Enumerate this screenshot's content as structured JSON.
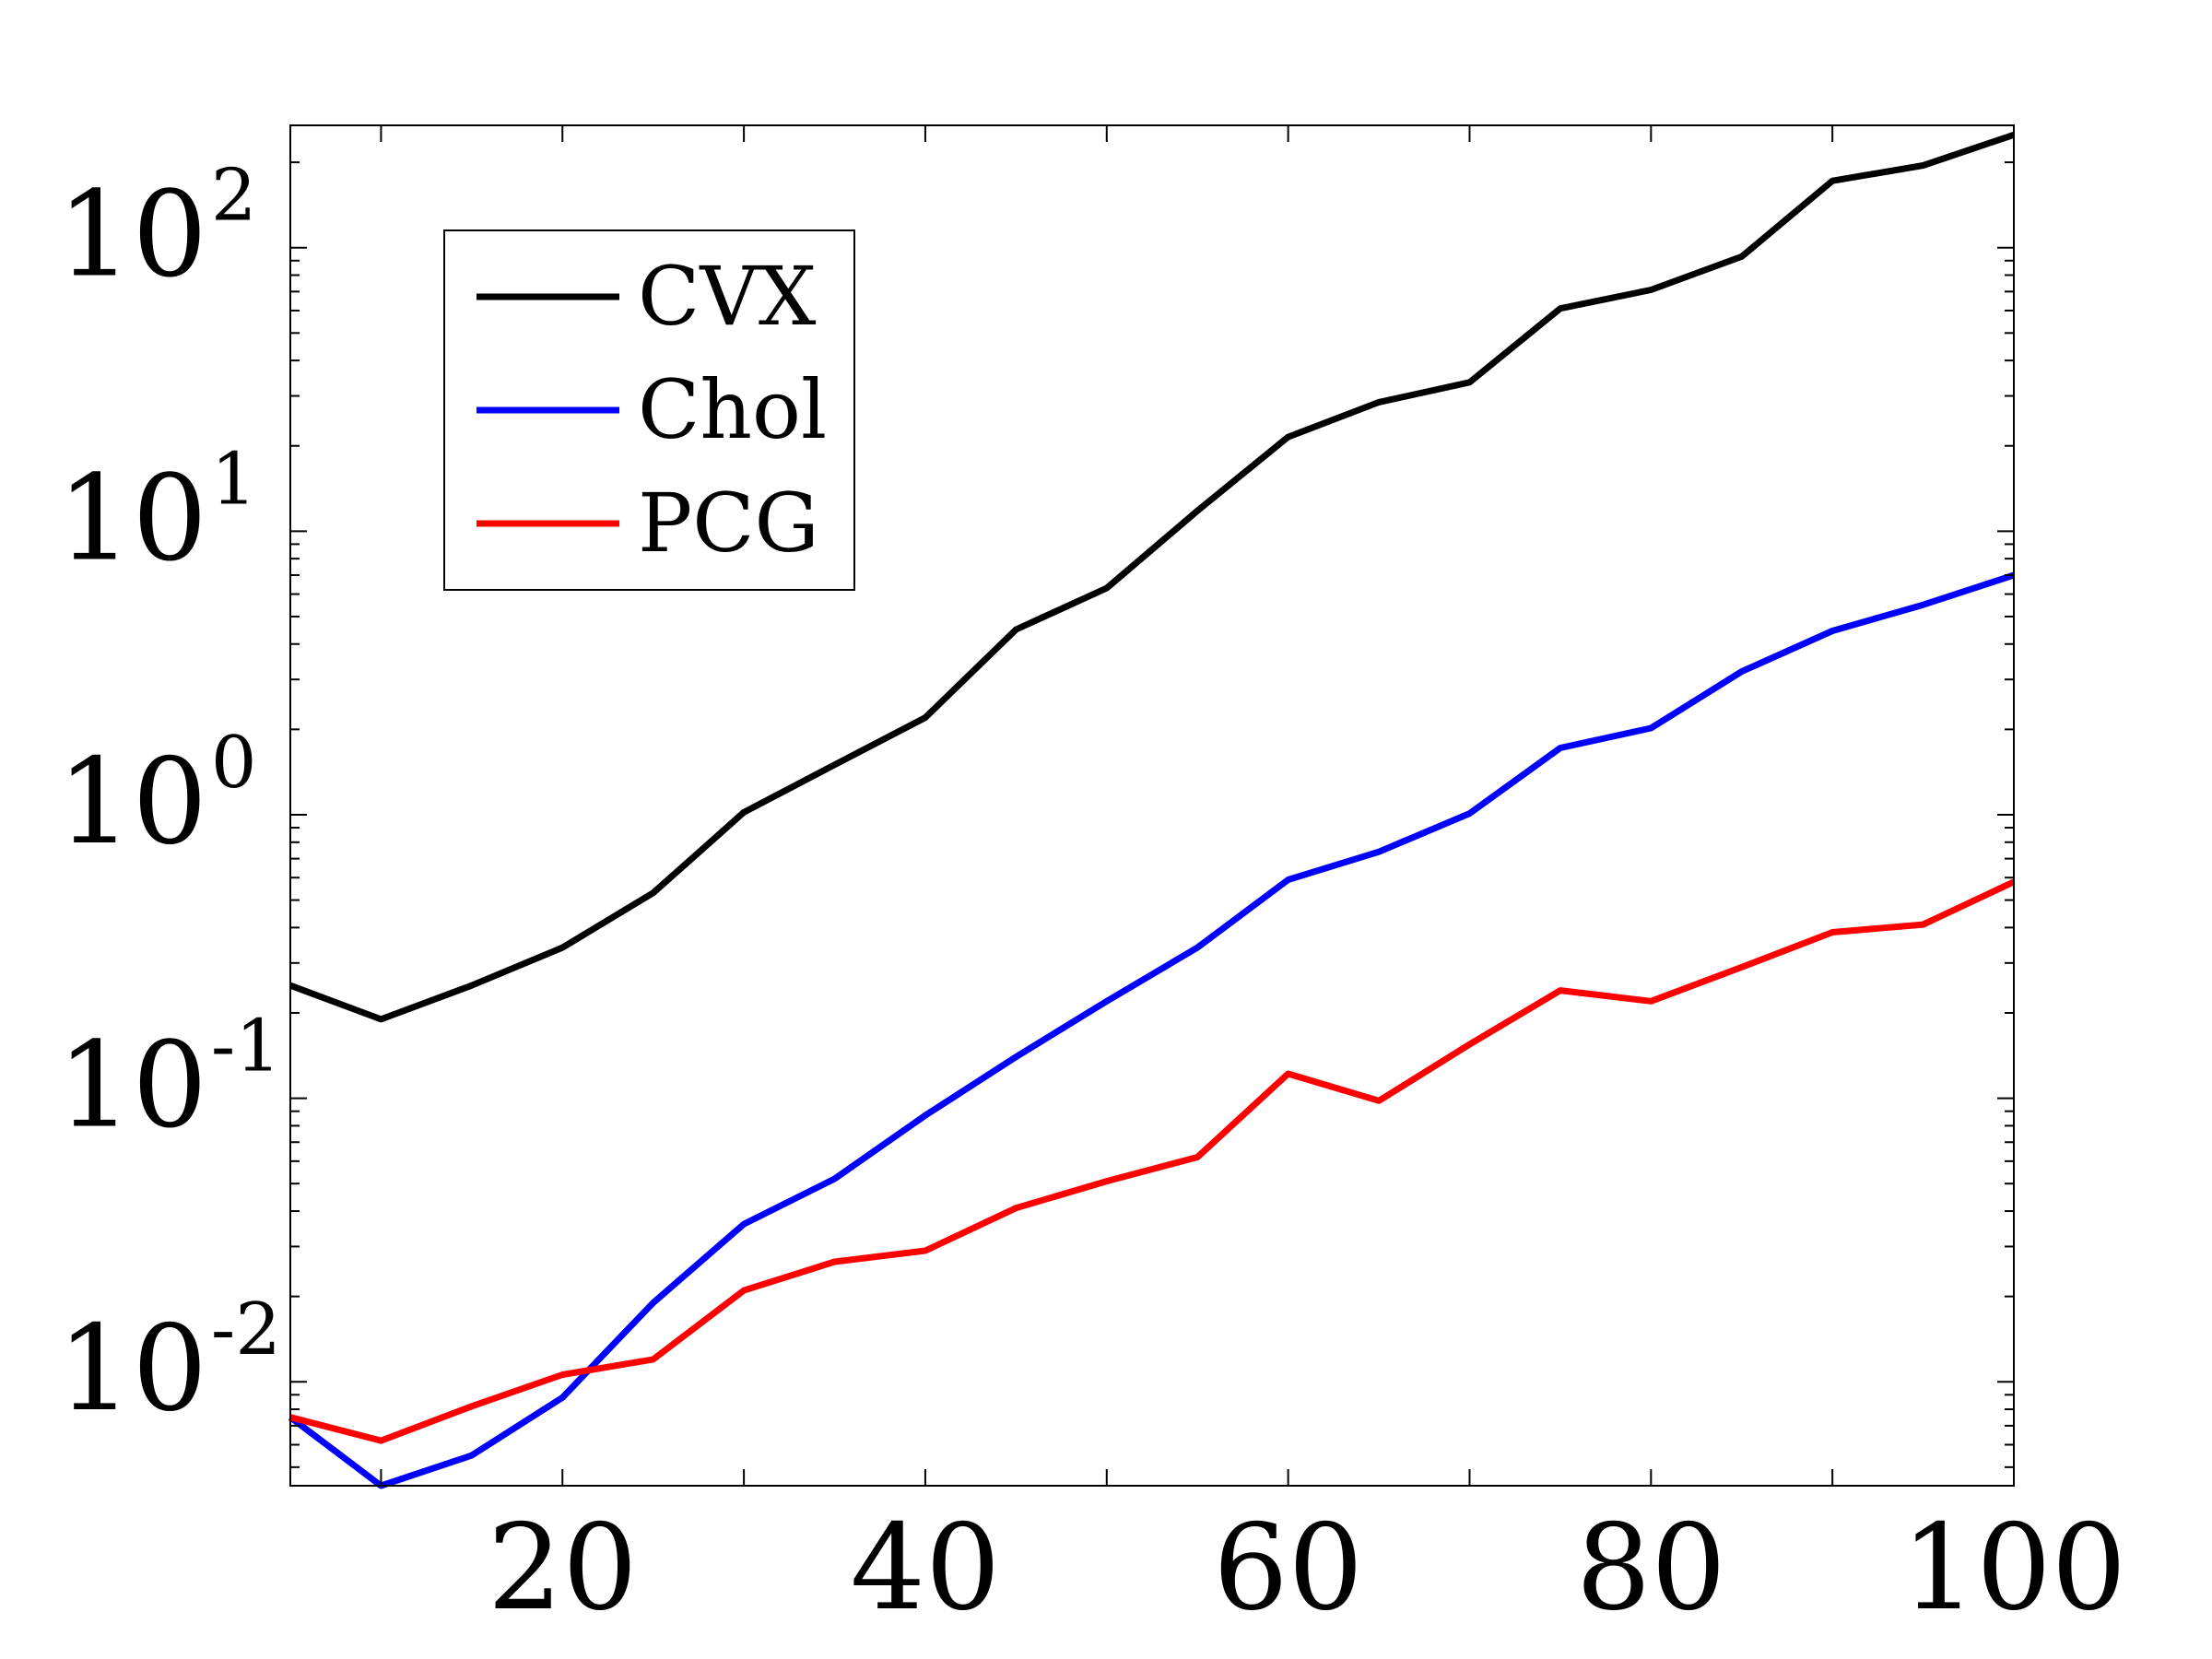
{
  "chart_data": {
    "type": "line",
    "title": "",
    "xlabel": "",
    "ylabel": "",
    "x_scale": "linear",
    "y_scale": "log",
    "xlim": [
      5,
      100
    ],
    "ylim": [
      0.0043,
      270
    ],
    "x_ticks": [
      20,
      40,
      60,
      80,
      100
    ],
    "x_tick_labels": [
      "20",
      "40",
      "60",
      "80",
      "100"
    ],
    "y_ticks": [
      0.01,
      0.1,
      1,
      10,
      100
    ],
    "y_tick_labels": [
      {
        "base": "10",
        "exp": "-2"
      },
      {
        "base": "10",
        "exp": "-1"
      },
      {
        "base": "10",
        "exp": "0"
      },
      {
        "base": "10",
        "exp": "1"
      },
      {
        "base": "10",
        "exp": "2"
      }
    ],
    "grid": false,
    "legend_position": "top-left",
    "x": [
      5,
      10,
      15,
      20,
      25,
      30,
      35,
      40,
      45,
      50,
      55,
      60,
      65,
      70,
      75,
      80,
      85,
      90,
      95,
      100
    ],
    "series": [
      {
        "name": "CVX",
        "color": "#000000",
        "values": [
          0.25,
          0.19,
          0.25,
          0.34,
          0.53,
          1.02,
          1.5,
          2.2,
          4.5,
          6.3,
          11.8,
          21.5,
          28.5,
          33.5,
          61,
          71,
          93,
          172,
          195,
          250
        ]
      },
      {
        "name": "Chol",
        "color": "#0000ff",
        "values": [
          0.0075,
          0.0043,
          0.0055,
          0.0088,
          0.019,
          0.036,
          0.052,
          0.087,
          0.14,
          0.22,
          0.34,
          0.59,
          0.74,
          1.01,
          1.72,
          2.02,
          3.2,
          4.45,
          5.5,
          7.0
        ]
      },
      {
        "name": "PCG",
        "color": "#ff0000",
        "values": [
          0.0075,
          0.0062,
          0.0082,
          0.0106,
          0.012,
          0.021,
          0.0265,
          0.029,
          0.041,
          0.051,
          0.062,
          0.122,
          0.098,
          0.155,
          0.24,
          0.22,
          0.29,
          0.385,
          0.41,
          0.58
        ]
      }
    ]
  }
}
